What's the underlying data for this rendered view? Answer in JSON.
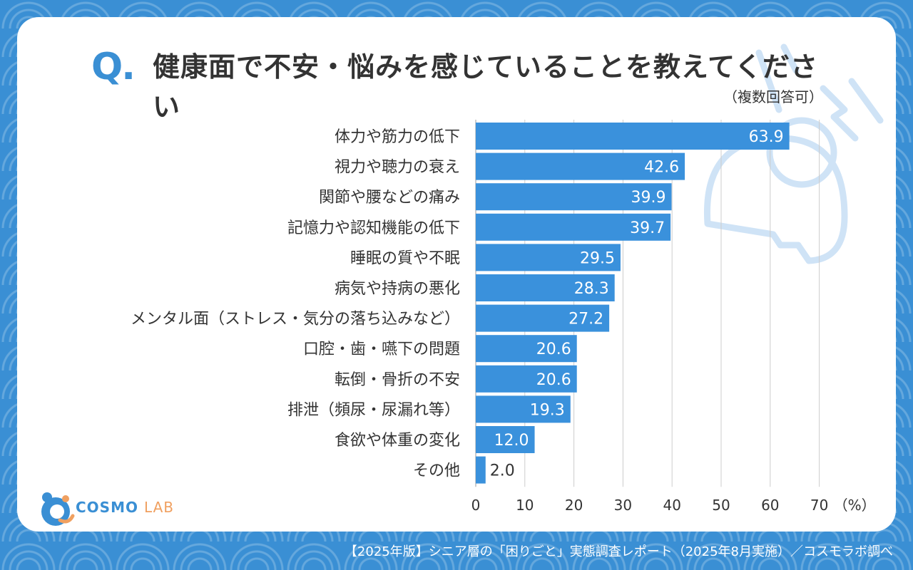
{
  "header": {
    "q_label": "Q.",
    "title": "健康面で不安・悩みを感じていることを教えてください",
    "note": "（複数回答可）"
  },
  "footer": {
    "source": "【2025年版】シニア層の「困りごと」実態調査レポート（2025年8月実施）／コスモラボ調べ"
  },
  "logo": {
    "main": "COSMO",
    "sub": "LAB"
  },
  "colors": {
    "bar": "#3a91dc",
    "accent": "#3a8fd4",
    "text": "#333333",
    "grid": "#cccccc"
  },
  "chart_data": {
    "type": "bar",
    "orientation": "horizontal",
    "categories": [
      "体力や筋力の低下",
      "視力や聴力の衰え",
      "関節や腰などの痛み",
      "記憶力や認知機能の低下",
      "睡眠の質や不眠",
      "病気や持病の悪化",
      "メンタル面（ストレス・気分の落ち込みなど）",
      "口腔・歯・嚥下の問題",
      "転倒・骨折の不安",
      "排泄（頻尿・尿漏れ等）",
      "食欲や体重の変化",
      "その他"
    ],
    "values": [
      63.9,
      42.6,
      39.9,
      39.7,
      29.5,
      28.3,
      27.2,
      20.6,
      20.6,
      19.3,
      12.0,
      2.0
    ],
    "value_labels": [
      "63.9",
      "42.6",
      "39.9",
      "39.7",
      "29.5",
      "28.3",
      "27.2",
      "20.6",
      "20.6",
      "19.3",
      "12.0",
      "2.0"
    ],
    "xlim": [
      0,
      70
    ],
    "ticks": [
      "0",
      "10",
      "20",
      "30",
      "40",
      "50",
      "60",
      "70"
    ],
    "unit": "（%）",
    "grid": true
  }
}
